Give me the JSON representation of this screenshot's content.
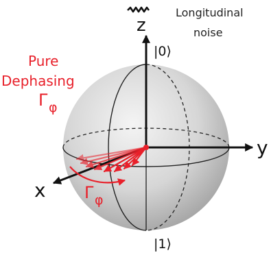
{
  "labels": {
    "noise_line1": "Longitudinal",
    "noise_line2": "noise",
    "pure_line1": "Pure",
    "pure_line2": "Dephasing",
    "gamma_symbol": "Γ",
    "phi_sub": "φ",
    "axis_x": "x",
    "axis_y": "y",
    "axis_z": "z",
    "ket0": "|0⟩",
    "ket1": "|1⟩"
  },
  "colors": {
    "accent": "#e8202a",
    "axis": "#111111",
    "sphere_light": "#f2f2f2",
    "sphere_dark": "#9a9a9a"
  },
  "icons": [
    "squiggle-noise-icon"
  ]
}
